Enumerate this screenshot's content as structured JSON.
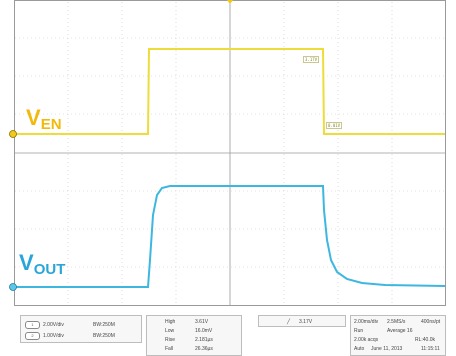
{
  "labels": {
    "ven_main": "V",
    "ven_sub": "EN",
    "vout_main": "V",
    "vout_sub": "OUT"
  },
  "colors": {
    "ven": "#f2b90d",
    "vout": "#29a6d8",
    "grid": "#a0a0a0"
  },
  "cursor_tags": {
    "top": "3.17V",
    "bottom": "0.01V"
  },
  "status": {
    "ch1_scale": "2.00V/div",
    "ch1_bw": "BW:250M",
    "ch2_scale": "1.00V/div",
    "ch2_bw": "BW:250M",
    "meas": [
      {
        "name": "High",
        "val": "3.61V"
      },
      {
        "name": "Low",
        "val": "16.0mV"
      },
      {
        "name": "Rise",
        "val": "2.181µs"
      },
      {
        "name": "Fall",
        "val": "26.36µs"
      }
    ],
    "trigger": "3.17V",
    "time": "2.00ms/div",
    "samp": "2.5MS/s",
    "pts": "400ns/pt",
    "mode": "Run",
    "avg": "Average 16",
    "acq": "2.00k acqs",
    "rl": "RL:40.0k",
    "auto": "Auto",
    "date": "June 11, 2013",
    "clock": "11:15:11"
  }
}
